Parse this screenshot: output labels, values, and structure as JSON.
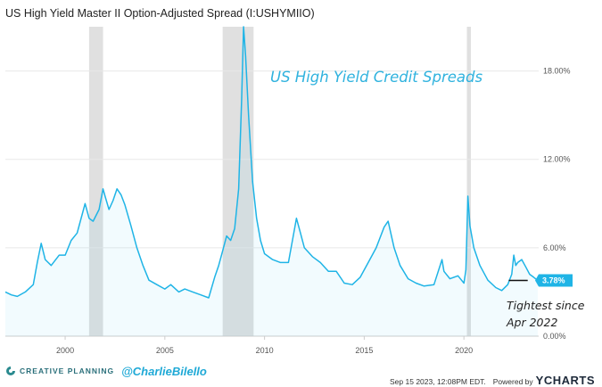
{
  "header": {
    "title": "US High Yield Master II Option-Adjusted Spread (I:USHYMIIO)"
  },
  "annotations": {
    "chart_title": "US High Yield Credit Spreads",
    "note_line1": "Tightest since",
    "note_line2": "Apr 2022"
  },
  "footer": {
    "brand": "CREATIVE PLANNING",
    "handle": "@CharlieBilello",
    "timestamp": "Sep 15 2023, 12:08PM EDT.",
    "powered_by": "Powered by",
    "provider": "YCHARTS"
  },
  "colors": {
    "series": "#1fb4e6",
    "recession": "#e0e0e0",
    "grid": "#e8e8e8",
    "title_annotation": "#2fb2de",
    "current_value_bg": "#1fb4e6"
  },
  "chart_data": {
    "type": "area",
    "title": "US High Yield Master II Option-Adjusted Spread (I:USHYMIIO)",
    "xlabel": "",
    "ylabel": "",
    "xlim": [
      1997,
      2023.75
    ],
    "ylim": [
      0,
      21
    ],
    "grid": true,
    "y_axis_position": "right",
    "y_ticks": [
      {
        "value": 0,
        "label": "0.00%"
      },
      {
        "value": 6,
        "label": "6.00%"
      },
      {
        "value": 12,
        "label": "12.00%"
      },
      {
        "value": 18,
        "label": "18.00%"
      }
    ],
    "x_ticks": [
      {
        "value": 2000,
        "label": "2000"
      },
      {
        "value": 2005,
        "label": "2005"
      },
      {
        "value": 2010,
        "label": "2010"
      },
      {
        "value": 2015,
        "label": "2015"
      },
      {
        "value": 2020,
        "label": "2020"
      }
    ],
    "recessions": [
      [
        2001.2,
        2001.9
      ],
      [
        2007.9,
        2009.45
      ],
      [
        2020.15,
        2020.35
      ]
    ],
    "current_value": {
      "value": 3.78,
      "label": "3.78%"
    },
    "tightest_level": {
      "from": 2022.25,
      "to": 2023.2,
      "value": 3.78
    },
    "series": [
      {
        "x": [
          1997.0,
          1997.3,
          1997.6,
          1998.0,
          1998.4,
          1998.6,
          1998.8,
          1999.0,
          1999.3,
          1999.7,
          2000.0,
          2000.3,
          2000.6,
          2000.9,
          2001.0,
          2001.2,
          2001.4,
          2001.7,
          2001.9,
          2002.0,
          2002.2,
          2002.4,
          2002.6,
          2002.8,
          2003.0,
          2003.3,
          2003.6,
          2003.9,
          2004.2,
          2004.6,
          2005.0,
          2005.3,
          2005.7,
          2006.0,
          2006.4,
          2006.8,
          2007.2,
          2007.5,
          2007.7,
          2007.9,
          2008.1,
          2008.3,
          2008.5,
          2008.7,
          2008.85,
          2008.95,
          2009.05,
          2009.2,
          2009.4,
          2009.6,
          2009.8,
          2010.0,
          2010.4,
          2010.8,
          2011.2,
          2011.6,
          2011.8,
          2012.0,
          2012.4,
          2012.8,
          2013.2,
          2013.6,
          2014.0,
          2014.4,
          2014.8,
          2015.2,
          2015.6,
          2016.0,
          2016.2,
          2016.5,
          2016.8,
          2017.2,
          2017.6,
          2018.0,
          2018.5,
          2018.9,
          2019.0,
          2019.3,
          2019.7,
          2020.0,
          2020.1,
          2020.2,
          2020.3,
          2020.5,
          2020.8,
          2021.2,
          2021.6,
          2021.9,
          2022.2,
          2022.4,
          2022.5,
          2022.6,
          2022.7,
          2022.9,
          2023.1,
          2023.3,
          2023.5,
          2023.7
        ],
        "values": [
          3.0,
          2.8,
          2.7,
          3.0,
          3.5,
          5.0,
          6.3,
          5.2,
          4.8,
          5.5,
          5.5,
          6.5,
          7.0,
          8.5,
          9.0,
          8.0,
          7.8,
          8.6,
          10.0,
          9.5,
          8.6,
          9.2,
          10.0,
          9.6,
          8.9,
          7.5,
          6.0,
          4.8,
          3.8,
          3.5,
          3.2,
          3.5,
          3.0,
          3.2,
          3.0,
          2.8,
          2.6,
          4.0,
          4.8,
          5.8,
          6.8,
          6.5,
          7.3,
          10.0,
          16.0,
          21.0,
          19.0,
          15.0,
          10.5,
          8.0,
          6.5,
          5.6,
          5.2,
          5.0,
          5.0,
          8.0,
          7.0,
          6.0,
          5.4,
          5.0,
          4.4,
          4.4,
          3.6,
          3.5,
          4.0,
          5.0,
          6.0,
          7.4,
          7.8,
          6.0,
          4.8,
          3.9,
          3.6,
          3.4,
          3.5,
          5.2,
          4.4,
          3.9,
          4.1,
          3.6,
          4.5,
          9.5,
          7.5,
          6.0,
          4.8,
          3.8,
          3.3,
          3.1,
          3.5,
          4.2,
          5.5,
          4.8,
          5.0,
          5.2,
          4.7,
          4.2,
          4.0,
          3.78
        ]
      }
    ]
  }
}
